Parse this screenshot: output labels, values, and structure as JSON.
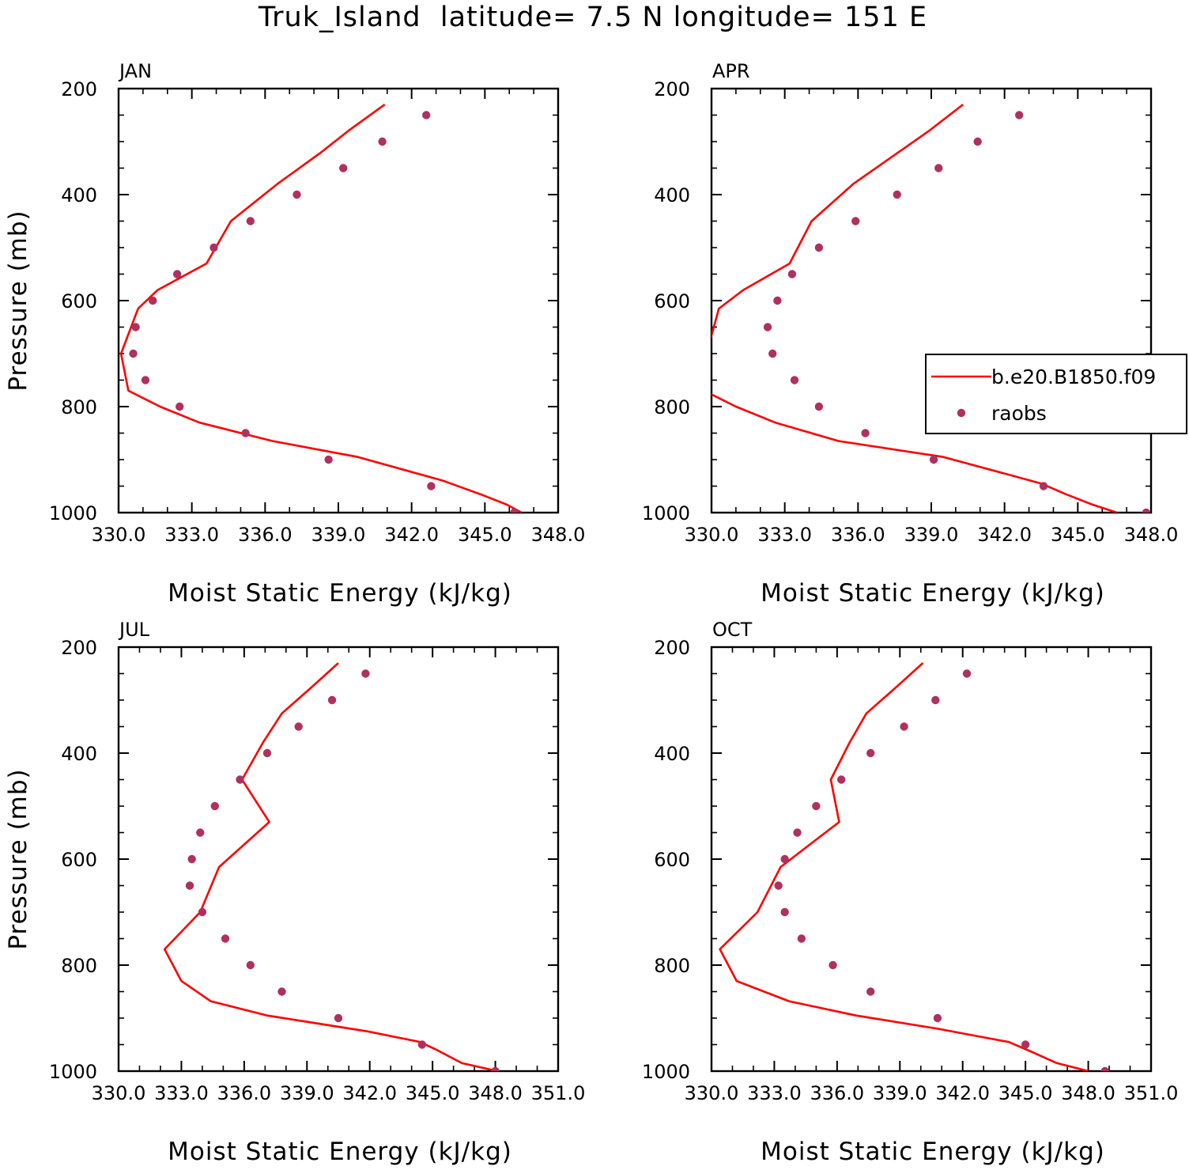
{
  "figure": {
    "title": "Truk_Island  latitude= 7.5 N longitude= 151 E"
  },
  "legend": {
    "entries": [
      {
        "label": "b.e20.B1850.f09",
        "kind": "line",
        "color": "#ff0000"
      },
      {
        "label": "raobs",
        "kind": "marker",
        "color": "#b03060"
      }
    ]
  },
  "chart_data": [
    {
      "type": "line",
      "panel": "JAN",
      "xlabel": "Moist Static Energy (kJ/kg)",
      "ylabel": "Pressure (mb)",
      "xlim": [
        330,
        348
      ],
      "ylim": [
        1000,
        200
      ],
      "xticks": [
        "330.0",
        "333.0",
        "336.0",
        "339.0",
        "342.0",
        "345.0",
        "348.0"
      ],
      "xtick_values": [
        330,
        333,
        336,
        339,
        342,
        345,
        348
      ],
      "yticks": [
        "200",
        "400",
        "600",
        "800",
        "1000"
      ],
      "ytick_values": [
        200,
        400,
        600,
        800,
        1000
      ],
      "show_ylabel": true,
      "show_legend": false,
      "series": [
        {
          "name": "b.e20.B1850.f09",
          "type": "line",
          "color": "#ff0000",
          "points": [
            [
              340.9,
              230
            ],
            [
              339.4,
              280
            ],
            [
              338.3,
              320
            ],
            [
              336.5,
              380
            ],
            [
              334.6,
              450
            ],
            [
              333.6,
              530
            ],
            [
              331.6,
              580
            ],
            [
              330.8,
              615
            ],
            [
              330.1,
              700
            ],
            [
              330.4,
              770
            ],
            [
              331.7,
              800
            ],
            [
              333.3,
              830
            ],
            [
              336.3,
              865
            ],
            [
              339.8,
              895
            ],
            [
              343.3,
              940
            ],
            [
              344.8,
              965
            ],
            [
              345.9,
              985
            ],
            [
              346.5,
              1000
            ]
          ]
        },
        {
          "name": "raobs",
          "type": "scatter",
          "color": "#b03060",
          "points": [
            [
              342.6,
              250
            ],
            [
              340.8,
              300
            ],
            [
              339.2,
              350
            ],
            [
              337.3,
              400
            ],
            [
              335.4,
              450
            ],
            [
              333.9,
              500
            ],
            [
              332.4,
              550
            ],
            [
              331.4,
              600
            ],
            [
              330.7,
              650
            ],
            [
              330.6,
              700
            ],
            [
              331.1,
              750
            ],
            [
              332.5,
              800
            ],
            [
              335.2,
              850
            ],
            [
              338.6,
              900
            ],
            [
              342.8,
              950
            ],
            [
              346.2,
              1000
            ]
          ]
        }
      ]
    },
    {
      "type": "line",
      "panel": "APR",
      "xlabel": "Moist Static Energy (kJ/kg)",
      "ylabel": "Pressure (mb)",
      "xlim": [
        330,
        348
      ],
      "ylim": [
        1000,
        200
      ],
      "xticks": [
        "330.0",
        "333.0",
        "336.0",
        "339.0",
        "342.0",
        "345.0",
        "348.0"
      ],
      "xtick_values": [
        330,
        333,
        336,
        339,
        342,
        345,
        348
      ],
      "yticks": [
        "200",
        "400",
        "600",
        "800",
        "1000"
      ],
      "ytick_values": [
        200,
        400,
        600,
        800,
        1000
      ],
      "show_ylabel": false,
      "show_legend": true,
      "series": [
        {
          "name": "b.e20.B1850.f09",
          "type": "line",
          "color": "#ff0000",
          "points": [
            [
              340.3,
              230
            ],
            [
              338.9,
              280
            ],
            [
              337.5,
              325
            ],
            [
              335.8,
              380
            ],
            [
              334.1,
              450
            ],
            [
              333.2,
              530
            ],
            [
              331.3,
              580
            ],
            [
              330.3,
              615
            ],
            [
              329.8,
              700
            ],
            [
              329.7,
              770
            ],
            [
              331.0,
              800
            ],
            [
              332.6,
              830
            ],
            [
              335.2,
              865
            ],
            [
              339.5,
              895
            ],
            [
              343.5,
              945
            ],
            [
              344.5,
              965
            ],
            [
              345.6,
              985
            ],
            [
              346.6,
              1000
            ]
          ]
        },
        {
          "name": "raobs",
          "type": "scatter",
          "color": "#b03060",
          "points": [
            [
              342.6,
              250
            ],
            [
              340.9,
              300
            ],
            [
              339.3,
              350
            ],
            [
              337.6,
              400
            ],
            [
              335.9,
              450
            ],
            [
              334.4,
              500
            ],
            [
              333.3,
              550
            ],
            [
              332.7,
              600
            ],
            [
              332.3,
              650
            ],
            [
              332.5,
              700
            ],
            [
              333.4,
              750
            ],
            [
              334.4,
              800
            ],
            [
              336.3,
              850
            ],
            [
              339.1,
              900
            ],
            [
              343.6,
              950
            ],
            [
              347.8,
              1000
            ]
          ]
        }
      ]
    },
    {
      "type": "line",
      "panel": "JUL",
      "xlabel": "Moist Static Energy (kJ/kg)",
      "ylabel": "Pressure (mb)",
      "xlim": [
        330,
        351
      ],
      "ylim": [
        1000,
        200
      ],
      "xticks": [
        "330.0",
        "333.0",
        "336.0",
        "339.0",
        "342.0",
        "345.0",
        "348.0",
        "351.0"
      ],
      "xtick_values": [
        330,
        333,
        336,
        339,
        342,
        345,
        348,
        351
      ],
      "yticks": [
        "200",
        "400",
        "600",
        "800",
        "1000"
      ],
      "ytick_values": [
        200,
        400,
        600,
        800,
        1000
      ],
      "show_ylabel": true,
      "show_legend": false,
      "series": [
        {
          "name": "b.e20.B1850.f09",
          "type": "line",
          "color": "#ff0000",
          "points": [
            [
              340.5,
              230
            ],
            [
              339.1,
              280
            ],
            [
              337.8,
              325
            ],
            [
              336.9,
              380
            ],
            [
              335.9,
              450
            ],
            [
              337.2,
              530
            ],
            [
              334.8,
              615
            ],
            [
              333.9,
              700
            ],
            [
              332.2,
              770
            ],
            [
              333.0,
              830
            ],
            [
              334.4,
              868
            ],
            [
              337.1,
              895
            ],
            [
              341.9,
              925
            ],
            [
              344.4,
              945
            ],
            [
              345.2,
              960
            ],
            [
              346.4,
              985
            ],
            [
              348.1,
              1000
            ]
          ]
        },
        {
          "name": "raobs",
          "type": "scatter",
          "color": "#b03060",
          "points": [
            [
              341.8,
              250
            ],
            [
              340.2,
              300
            ],
            [
              338.6,
              350
            ],
            [
              337.1,
              400
            ],
            [
              335.8,
              450
            ],
            [
              334.6,
              500
            ],
            [
              333.9,
              550
            ],
            [
              333.5,
              600
            ],
            [
              333.4,
              650
            ],
            [
              334.0,
              700
            ],
            [
              335.1,
              750
            ],
            [
              336.3,
              800
            ],
            [
              337.8,
              850
            ],
            [
              340.5,
              900
            ],
            [
              344.5,
              950
            ],
            [
              348.0,
              1000
            ]
          ]
        }
      ]
    },
    {
      "type": "line",
      "panel": "OCT",
      "xlabel": "Moist Static Energy (kJ/kg)",
      "ylabel": "Pressure (mb)",
      "xlim": [
        330,
        351
      ],
      "ylim": [
        1000,
        200
      ],
      "xticks": [
        "330.0",
        "333.0",
        "336.0",
        "339.0",
        "342.0",
        "345.0",
        "348.0",
        "351.0"
      ],
      "xtick_values": [
        330,
        333,
        336,
        339,
        342,
        345,
        348,
        351
      ],
      "yticks": [
        "200",
        "400",
        "600",
        "800",
        "1000"
      ],
      "ytick_values": [
        200,
        400,
        600,
        800,
        1000
      ],
      "show_ylabel": false,
      "show_legend": false,
      "series": [
        {
          "name": "b.e20.B1850.f09",
          "type": "line",
          "color": "#ff0000",
          "points": [
            [
              340.1,
              230
            ],
            [
              338.7,
              280
            ],
            [
              337.4,
              325
            ],
            [
              336.6,
              380
            ],
            [
              335.7,
              450
            ],
            [
              336.1,
              530
            ],
            [
              333.3,
              615
            ],
            [
              332.2,
              700
            ],
            [
              330.4,
              770
            ],
            [
              331.2,
              830
            ],
            [
              333.7,
              868
            ],
            [
              336.9,
              895
            ],
            [
              340.8,
              920
            ],
            [
              344.2,
              945
            ],
            [
              345.2,
              962
            ],
            [
              346.5,
              985
            ],
            [
              348.0,
              1000
            ]
          ]
        },
        {
          "name": "raobs",
          "type": "scatter",
          "color": "#b03060",
          "points": [
            [
              342.2,
              250
            ],
            [
              340.7,
              300
            ],
            [
              339.2,
              350
            ],
            [
              337.6,
              400
            ],
            [
              336.2,
              450
            ],
            [
              335.0,
              500
            ],
            [
              334.1,
              550
            ],
            [
              333.5,
              600
            ],
            [
              333.2,
              650
            ],
            [
              333.5,
              700
            ],
            [
              334.3,
              750
            ],
            [
              335.8,
              800
            ],
            [
              337.6,
              850
            ],
            [
              340.8,
              900
            ],
            [
              345.0,
              950
            ],
            [
              348.8,
              1000
            ]
          ]
        }
      ]
    }
  ]
}
